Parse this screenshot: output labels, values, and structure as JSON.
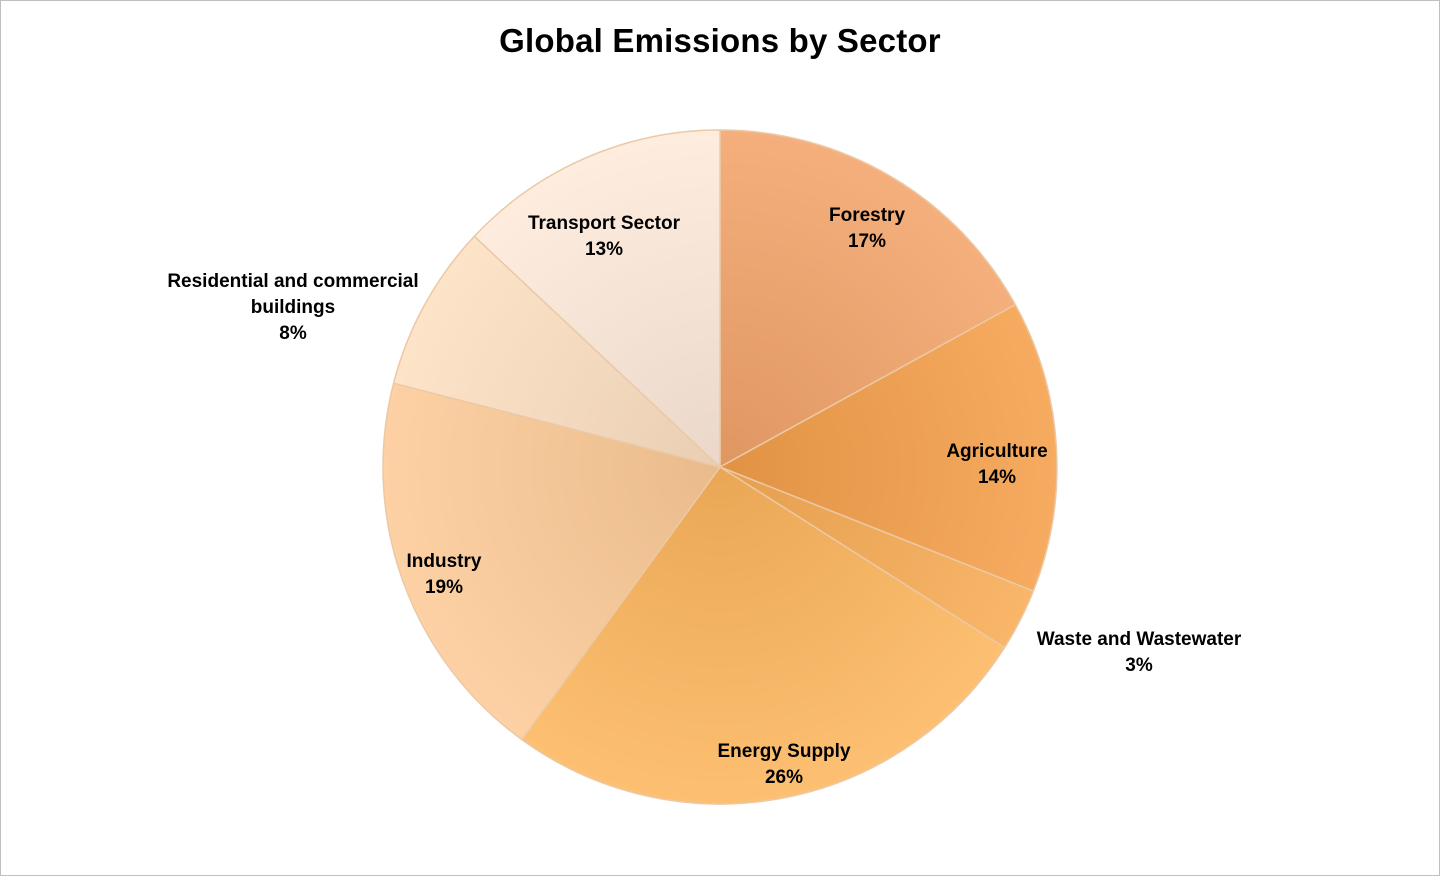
{
  "chart_data": {
    "type": "pie",
    "title": "Global Emissions by Sector",
    "start_angle_deg": 0,
    "direction": "clockwise",
    "slices": [
      {
        "name": "Forestry",
        "value": 17,
        "value_label": "17%",
        "color": "#f2a46a",
        "label_lines": [
          "Forestry"
        ]
      },
      {
        "name": "Agriculture",
        "value": 14,
        "value_label": "14%",
        "color": "#f59f4a",
        "label_lines": [
          "Agriculture"
        ]
      },
      {
        "name": "Waste and Wastewater",
        "value": 3,
        "value_label": "3%",
        "color": "#f8ac55",
        "label_lines": [
          "Waste and Wastewater"
        ]
      },
      {
        "name": "Energy Supply",
        "value": 26,
        "value_label": "26%",
        "color": "#fdb65e",
        "label_lines": [
          "Energy Supply"
        ]
      },
      {
        "name": "Industry",
        "value": 19,
        "value_label": "19%",
        "color": "#fdcb98",
        "label_lines": [
          "Industry"
        ]
      },
      {
        "name": "Residential and commercial buildings",
        "value": 8,
        "value_label": "8%",
        "color": "#fde0c2",
        "label_lines": [
          "Residential and commercial",
          "buildings"
        ]
      },
      {
        "name": "Transport Sector",
        "value": 13,
        "value_label": "13%",
        "color": "#feeadb",
        "label_lines": [
          "Transport Sector"
        ]
      }
    ],
    "slice_border_color": "#ebc9a6",
    "legend": "none"
  }
}
